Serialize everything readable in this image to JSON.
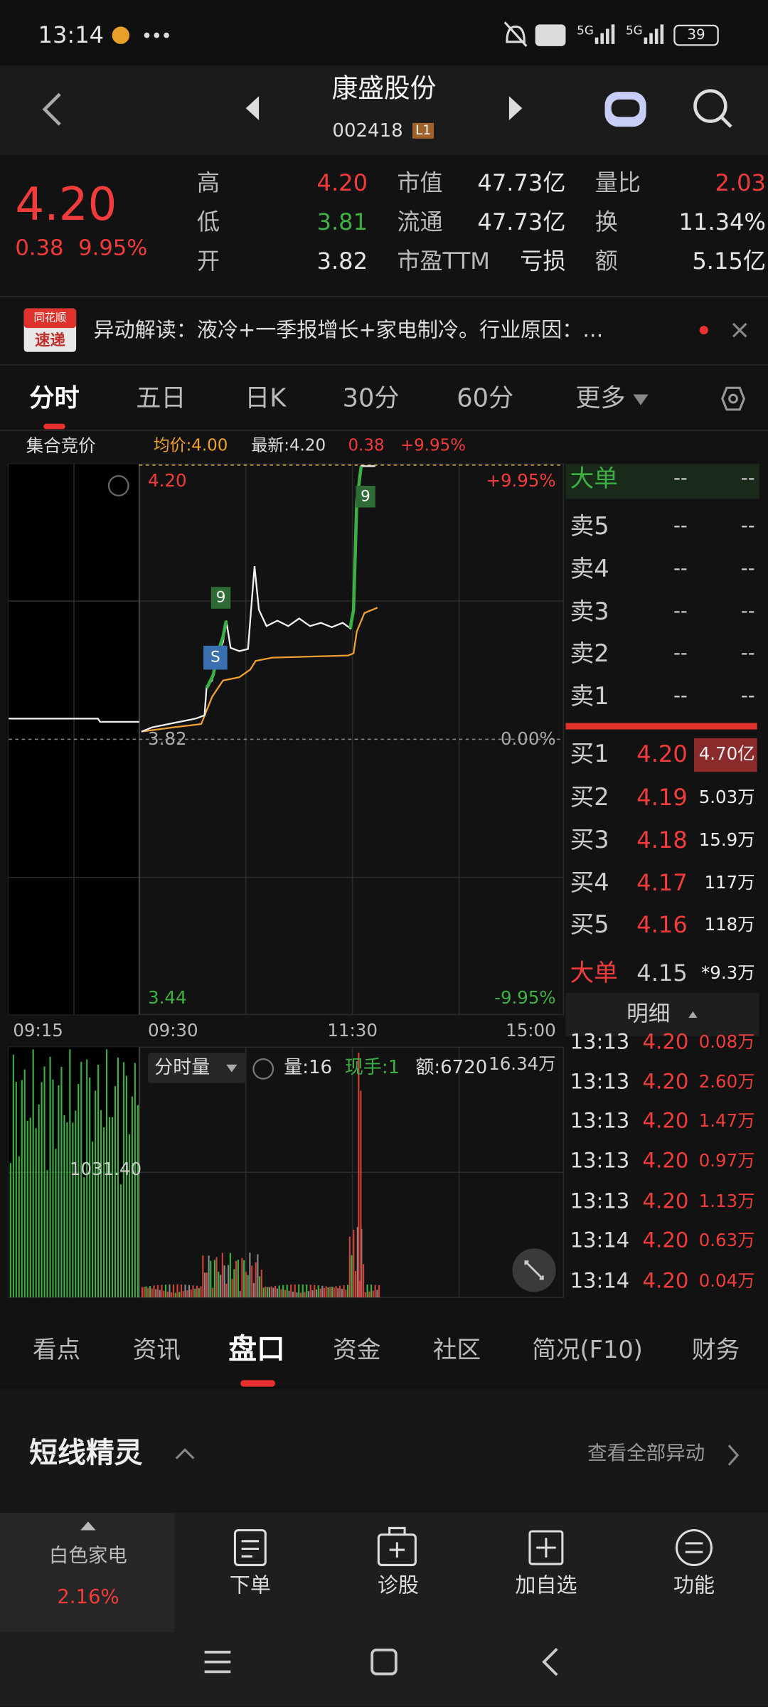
{
  "status_bar": {
    "time": "13:14",
    "network": "5G",
    "battery": "39"
  },
  "header": {
    "title": "康盛股份",
    "code": "002418",
    "level": "L1"
  },
  "quote": {
    "price": "4.20",
    "change": "0.38",
    "change_pct": "9.95%",
    "stats": [
      [
        "高",
        "4.20"
      ],
      [
        "低",
        "3.81"
      ],
      [
        "开",
        "3.82"
      ],
      [
        "市值",
        "47.73亿"
      ],
      [
        "流通",
        "47.73亿"
      ],
      [
        "市盈TTM",
        "亏损"
      ],
      [
        "量比",
        "2.03"
      ],
      [
        "换",
        "11.34%"
      ],
      [
        "额",
        "5.15亿"
      ]
    ]
  },
  "news": {
    "badge_top": "同花顺",
    "badge_bottom": "速递",
    "text": "异动解读：液冷+一季报增长+家电制冷。行业原因：…"
  },
  "chart_tabs": [
    "分时",
    "五日",
    "日K",
    "30分",
    "60分",
    "更多"
  ],
  "chart_info": {
    "label": "集合竞价",
    "avg": "均价:4.00",
    "latest": "最新:4.20",
    "change": "0.38",
    "change_pct": "+9.95%"
  },
  "price_chart": {
    "high": "4.20",
    "high_pct": "+9.95%",
    "prev_close": "3.82",
    "zero_pct": "0.00%",
    "low": "3.44",
    "low_pct": "-9.95%",
    "times": [
      "09:15",
      "09:30",
      "11:30",
      "15:00"
    ],
    "markers": [
      "9",
      "S",
      "9"
    ]
  },
  "volume_chart": {
    "selector": "分时量",
    "volume": "量:16",
    "hand": "现手:1",
    "amount": "额:6720",
    "max": "16.34万",
    "auction_value": "1031.40"
  },
  "order_book": {
    "asks": [
      [
        "大单",
        "--",
        "--"
      ],
      [
        "卖5",
        "--",
        "--"
      ],
      [
        "卖4",
        "--",
        "--"
      ],
      [
        "卖3",
        "--",
        "--"
      ],
      [
        "卖2",
        "--",
        "--"
      ],
      [
        "卖1",
        "--",
        "--"
      ]
    ],
    "bids": [
      [
        "买1",
        "4.20",
        "4.70亿"
      ],
      [
        "买2",
        "4.19",
        "5.03万"
      ],
      [
        "买3",
        "4.18",
        "15.9万"
      ],
      [
        "买4",
        "4.17",
        "117万"
      ],
      [
        "买5",
        "4.16",
        "118万"
      ],
      [
        "大单",
        "4.15",
        "*9.3万"
      ]
    ]
  },
  "trades": {
    "title": "明细",
    "rows": [
      [
        "13:13",
        "4.20",
        "0.08万"
      ],
      [
        "13:13",
        "4.20",
        "2.60万"
      ],
      [
        "13:13",
        "4.20",
        "1.47万"
      ],
      [
        "13:13",
        "4.20",
        "0.97万"
      ],
      [
        "13:13",
        "4.20",
        "1.13万"
      ],
      [
        "13:14",
        "4.20",
        "0.63万"
      ],
      [
        "13:14",
        "4.20",
        "0.04万"
      ]
    ]
  },
  "section_tabs": [
    "看点",
    "资讯",
    "盘口",
    "资金",
    "社区",
    "简况(F10)",
    "财务"
  ],
  "section": {
    "title": "短线精灵",
    "link": "查看全部异动"
  },
  "bottom_bar": {
    "sector": "白色家电",
    "sector_change": "2.16%",
    "actions": [
      "下单",
      "诊股",
      "加自选",
      "功能"
    ]
  }
}
